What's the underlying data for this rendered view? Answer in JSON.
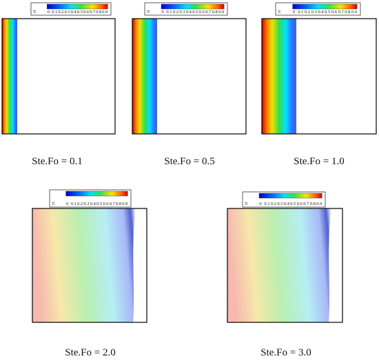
{
  "colorbar": {
    "label": "T:",
    "ticks": [
      "0",
      "0.1",
      "0.2",
      "0.3",
      "0.4",
      "0.5",
      "0.6",
      "0.7",
      "0.8",
      "0.9"
    ]
  },
  "panels": [
    {
      "caption": "Ste.Fo = 0.1"
    },
    {
      "caption": "Ste.Fo = 0.5"
    },
    {
      "caption": "Ste.Fo = 1.0"
    },
    {
      "caption": "Ste.Fo = 2.0"
    },
    {
      "caption": "Ste.Fo = 3.0"
    }
  ]
}
